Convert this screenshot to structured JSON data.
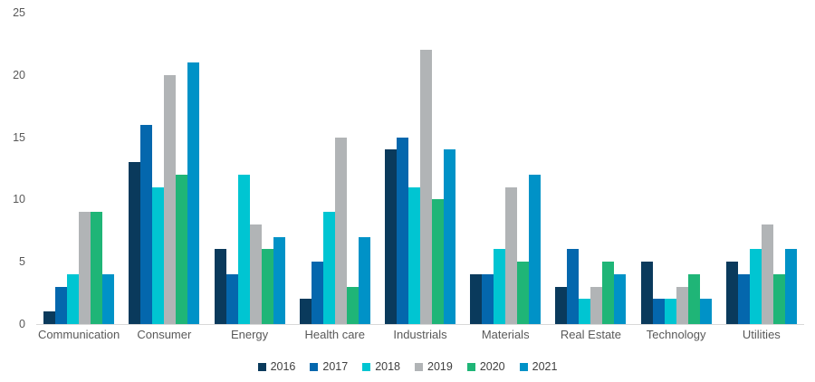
{
  "chart_data": {
    "type": "bar",
    "title": "",
    "xlabel": "",
    "ylabel": "",
    "ylim": [
      0,
      25
    ],
    "yticks": [
      0,
      5,
      10,
      15,
      20,
      25
    ],
    "grid": false,
    "legend_position": "bottom",
    "categories": [
      "Communication",
      "Consumer",
      "Energy",
      "Health care",
      "Industrials",
      "Materials",
      "Real Estate",
      "Technology",
      "Utilities"
    ],
    "series": [
      {
        "name": "2016",
        "color": "#0a3a5c",
        "values": [
          1,
          13,
          6,
          2,
          14,
          4,
          3,
          5,
          5
        ]
      },
      {
        "name": "2017",
        "color": "#0467ad",
        "values": [
          3,
          16,
          4,
          5,
          15,
          4,
          6,
          2,
          4
        ]
      },
      {
        "name": "2018",
        "color": "#00c5d2",
        "values": [
          4,
          11,
          12,
          9,
          11,
          6,
          2,
          2,
          6
        ]
      },
      {
        "name": "2019",
        "color": "#b1b4b6",
        "values": [
          9,
          20,
          8,
          15,
          22,
          11,
          3,
          3,
          8
        ]
      },
      {
        "name": "2020",
        "color": "#1fb577",
        "values": [
          9,
          12,
          6,
          3,
          10,
          5,
          5,
          4,
          4
        ]
      },
      {
        "name": "2021",
        "color": "#0092c7",
        "values": [
          4,
          21,
          7,
          7,
          14,
          12,
          4,
          2,
          6
        ]
      }
    ]
  },
  "colors": {
    "axis_text": "#595959",
    "legend_text": "#404040",
    "baseline": "#d9d9d9",
    "background": "#ffffff"
  }
}
